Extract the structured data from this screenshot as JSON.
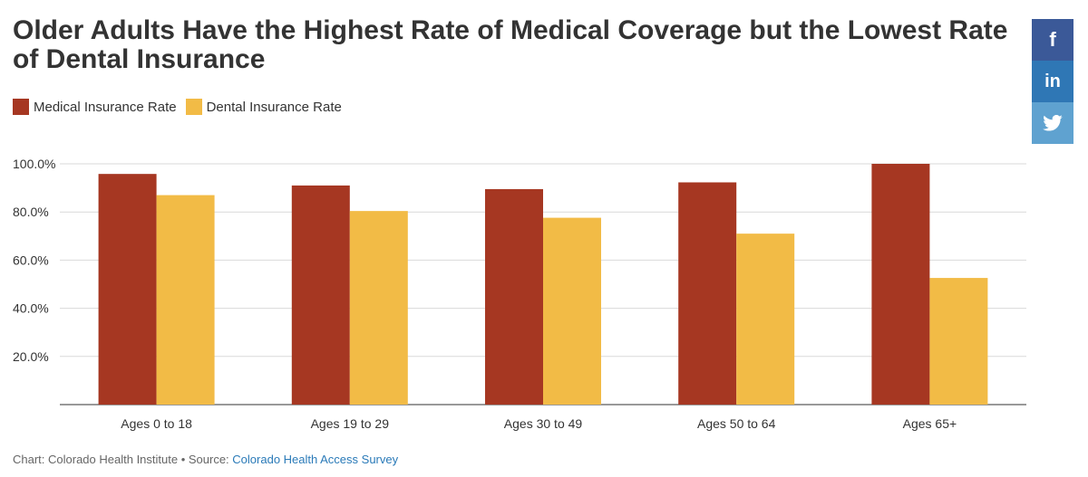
{
  "chart_data": {
    "type": "bar",
    "title": "Older Adults Have the Highest Rate of Medical Coverage but the Lowest Rate of Dental Insurance",
    "categories": [
      "Ages 0 to 18",
      "Ages 19 to 29",
      "Ages 30 to 49",
      "Ages 50 to 64",
      "Ages 65+"
    ],
    "series": [
      {
        "name": "Medical Insurance Rate",
        "color": "#a63722",
        "values": [
          95.8,
          91.0,
          89.5,
          92.3,
          100.0
        ]
      },
      {
        "name": "Dental Insurance Rate",
        "color": "#f2bb46",
        "values": [
          87.0,
          80.4,
          77.6,
          71.0,
          52.6
        ]
      }
    ],
    "y_ticks": [
      "100.0%",
      "80.0%",
      "60.0%",
      "40.0%",
      "20.0%"
    ],
    "ylim": [
      0,
      100
    ],
    "xlabel": "",
    "ylabel": "",
    "grid": true,
    "legend_position": "top-left"
  },
  "footer": {
    "credit": "Chart: Colorado Health Institute • Source: ",
    "source_link": "Colorado Health Access Survey"
  },
  "share": {
    "facebook": {
      "icon": "facebook-icon",
      "color": "#3b5998",
      "glyph": "f"
    },
    "linkedin": {
      "icon": "linkedin-icon",
      "color": "#2f77b5",
      "glyph": "in"
    },
    "twitter": {
      "icon": "twitter-icon",
      "color": "#5fa2d0"
    }
  }
}
